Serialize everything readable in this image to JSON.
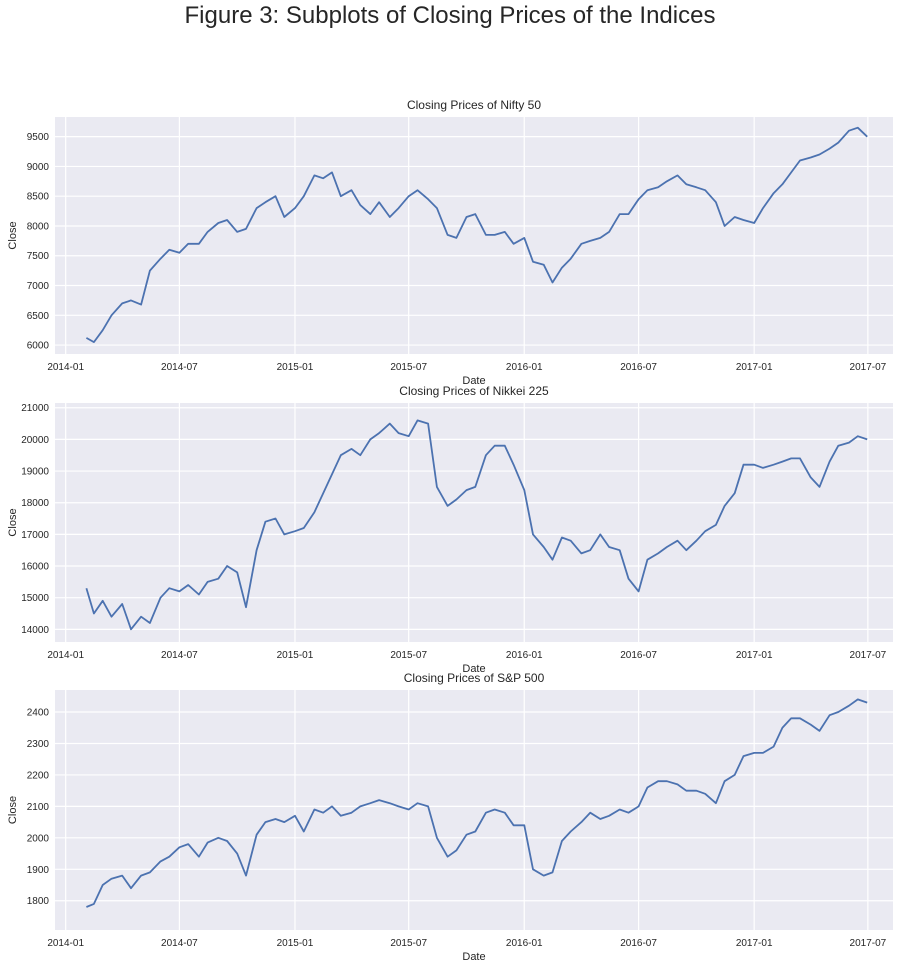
{
  "figure_title": "Figure 3: Subplots of Closing Prices of the Indices",
  "colors": {
    "line": "#4c72b0",
    "panel": "#eaeaf2",
    "grid": "#ffffff"
  },
  "chart_data": [
    {
      "type": "line",
      "title": "Closing Prices of Nifty 50",
      "xlabel": "Date",
      "ylabel": "Close",
      "x_ticks": [
        "2014-01",
        "2014-07",
        "2015-01",
        "2015-07",
        "2016-01",
        "2016-07",
        "2017-01",
        "2017-07"
      ],
      "y_ticks": [
        6000,
        6500,
        7000,
        7500,
        8000,
        8500,
        9000,
        9500
      ],
      "ylim": [
        5850,
        9830
      ],
      "xlim": [
        "2013-12-15",
        "2017-08-10"
      ],
      "grid": true,
      "series": [
        {
          "x": [
            "2014-02-03",
            "2014-02-15",
            "2014-03-01",
            "2014-03-15",
            "2014-04-01",
            "2014-04-15",
            "2014-05-01",
            "2014-05-15",
            "2014-06-01",
            "2014-06-15",
            "2014-07-01",
            "2014-07-15",
            "2014-08-01",
            "2014-08-15",
            "2014-09-01",
            "2014-09-15",
            "2014-10-01",
            "2014-10-15",
            "2014-11-01",
            "2014-11-15",
            "2014-12-01",
            "2014-12-15",
            "2015-01-01",
            "2015-01-15",
            "2015-02-01",
            "2015-02-15",
            "2015-03-01",
            "2015-03-15",
            "2015-04-01",
            "2015-04-15",
            "2015-05-01",
            "2015-05-15",
            "2015-06-01",
            "2015-06-15",
            "2015-07-01",
            "2015-07-15",
            "2015-08-01",
            "2015-08-15",
            "2015-09-01",
            "2015-09-15",
            "2015-10-01",
            "2015-10-15",
            "2015-11-01",
            "2015-11-15",
            "2015-12-01",
            "2015-12-15",
            "2016-01-01",
            "2016-01-15",
            "2016-02-01",
            "2016-02-15",
            "2016-03-01",
            "2016-03-15",
            "2016-04-01",
            "2016-04-15",
            "2016-05-01",
            "2016-05-15",
            "2016-06-01",
            "2016-06-15",
            "2016-07-01",
            "2016-07-15",
            "2016-08-01",
            "2016-08-15",
            "2016-09-01",
            "2016-09-15",
            "2016-10-01",
            "2016-10-15",
            "2016-11-01",
            "2016-11-15",
            "2016-12-01",
            "2016-12-15",
            "2017-01-01",
            "2017-01-15",
            "2017-02-01",
            "2017-02-15",
            "2017-03-01",
            "2017-03-15",
            "2017-04-01",
            "2017-04-15",
            "2017-05-01",
            "2017-05-15",
            "2017-06-01",
            "2017-06-15",
            "2017-06-30"
          ],
          "y": [
            6120,
            6050,
            6250,
            6500,
            6700,
            6750,
            6680,
            7250,
            7450,
            7600,
            7550,
            7700,
            7700,
            7900,
            8050,
            8100,
            7900,
            7950,
            8300,
            8400,
            8500,
            8150,
            8300,
            8500,
            8850,
            8800,
            8900,
            8500,
            8600,
            8350,
            8200,
            8400,
            8150,
            8300,
            8500,
            8600,
            8450,
            8300,
            7850,
            7800,
            8150,
            8200,
            7850,
            7850,
            7900,
            7700,
            7800,
            7400,
            7350,
            7050,
            7300,
            7450,
            7700,
            7750,
            7800,
            7900,
            8200,
            8200,
            8450,
            8600,
            8650,
            8750,
            8850,
            8700,
            8650,
            8600,
            8400,
            8000,
            8150,
            8100,
            8050,
            8300,
            8550,
            8700,
            8900,
            9100,
            9150,
            9200,
            9300,
            9400,
            9600,
            9650,
            9500
          ]
        }
      ]
    },
    {
      "type": "line",
      "title": "Closing Prices of Nikkei 225",
      "xlabel": "Date",
      "ylabel": "Close",
      "x_ticks": [
        "2014-01",
        "2014-07",
        "2015-01",
        "2015-07",
        "2016-01",
        "2016-07",
        "2017-01",
        "2017-07"
      ],
      "y_ticks": [
        14000,
        15000,
        16000,
        17000,
        18000,
        19000,
        20000,
        21000
      ],
      "ylim": [
        13600,
        21150
      ],
      "xlim": [
        "2013-12-15",
        "2017-08-10"
      ],
      "grid": true,
      "series": [
        {
          "x": [
            "2014-02-03",
            "2014-02-15",
            "2014-03-01",
            "2014-03-15",
            "2014-04-01",
            "2014-04-15",
            "2014-05-01",
            "2014-05-15",
            "2014-06-01",
            "2014-06-15",
            "2014-07-01",
            "2014-07-15",
            "2014-08-01",
            "2014-08-15",
            "2014-09-01",
            "2014-09-15",
            "2014-10-01",
            "2014-10-15",
            "2014-11-01",
            "2014-11-15",
            "2014-12-01",
            "2014-12-15",
            "2015-01-01",
            "2015-01-15",
            "2015-02-01",
            "2015-02-15",
            "2015-03-01",
            "2015-03-15",
            "2015-04-01",
            "2015-04-15",
            "2015-05-01",
            "2015-05-15",
            "2015-06-01",
            "2015-06-15",
            "2015-07-01",
            "2015-07-15",
            "2015-08-01",
            "2015-08-15",
            "2015-09-01",
            "2015-09-15",
            "2015-10-01",
            "2015-10-15",
            "2015-11-01",
            "2015-11-15",
            "2015-12-01",
            "2015-12-15",
            "2016-01-01",
            "2016-01-15",
            "2016-02-01",
            "2016-02-15",
            "2016-03-01",
            "2016-03-15",
            "2016-04-01",
            "2016-04-15",
            "2016-05-01",
            "2016-05-15",
            "2016-06-01",
            "2016-06-15",
            "2016-07-01",
            "2016-07-15",
            "2016-08-01",
            "2016-08-15",
            "2016-09-01",
            "2016-09-15",
            "2016-10-01",
            "2016-10-15",
            "2016-11-01",
            "2016-11-15",
            "2016-12-01",
            "2016-12-15",
            "2017-01-01",
            "2017-01-15",
            "2017-02-01",
            "2017-02-15",
            "2017-03-01",
            "2017-03-15",
            "2017-04-01",
            "2017-04-15",
            "2017-05-01",
            "2017-05-15",
            "2017-06-01",
            "2017-06-15",
            "2017-06-30"
          ],
          "y": [
            15300,
            14500,
            14900,
            14400,
            14800,
            14000,
            14400,
            14200,
            15000,
            15300,
            15200,
            15400,
            15100,
            15500,
            15600,
            16000,
            15800,
            14700,
            16500,
            17400,
            17500,
            17000,
            17100,
            17200,
            17700,
            18300,
            18900,
            19500,
            19700,
            19500,
            20000,
            20200,
            20500,
            20200,
            20100,
            20600,
            20500,
            18500,
            17900,
            18100,
            18400,
            18500,
            19500,
            19800,
            19800,
            19200,
            18400,
            17000,
            16600,
            16200,
            16900,
            16800,
            16400,
            16500,
            17000,
            16600,
            16500,
            15600,
            15200,
            16200,
            16400,
            16600,
            16800,
            16500,
            16800,
            17100,
            17300,
            17900,
            18300,
            19200,
            19200,
            19100,
            19200,
            19300,
            19400,
            19400,
            18800,
            18500,
            19300,
            19800,
            19900,
            20100,
            20000
          ]
        }
      ]
    },
    {
      "type": "line",
      "title": "Closing Prices of S&P 500",
      "xlabel": "Date",
      "ylabel": "Close",
      "x_ticks": [
        "2014-01",
        "2014-07",
        "2015-01",
        "2015-07",
        "2016-01",
        "2016-07",
        "2017-01",
        "2017-07"
      ],
      "y_ticks": [
        1800,
        1900,
        2000,
        2100,
        2200,
        2300,
        2400
      ],
      "ylim": [
        1707,
        2470
      ],
      "xlim": [
        "2013-12-15",
        "2017-08-10"
      ],
      "grid": true,
      "series": [
        {
          "x": [
            "2014-02-03",
            "2014-02-15",
            "2014-03-01",
            "2014-03-15",
            "2014-04-01",
            "2014-04-15",
            "2014-05-01",
            "2014-05-15",
            "2014-06-01",
            "2014-06-15",
            "2014-07-01",
            "2014-07-15",
            "2014-08-01",
            "2014-08-15",
            "2014-09-01",
            "2014-09-15",
            "2014-10-01",
            "2014-10-15",
            "2014-11-01",
            "2014-11-15",
            "2014-12-01",
            "2014-12-15",
            "2015-01-01",
            "2015-01-15",
            "2015-02-01",
            "2015-02-15",
            "2015-03-01",
            "2015-03-15",
            "2015-04-01",
            "2015-04-15",
            "2015-05-01",
            "2015-05-15",
            "2015-06-01",
            "2015-06-15",
            "2015-07-01",
            "2015-07-15",
            "2015-08-01",
            "2015-08-15",
            "2015-09-01",
            "2015-09-15",
            "2015-10-01",
            "2015-10-15",
            "2015-11-01",
            "2015-11-15",
            "2015-12-01",
            "2015-12-15",
            "2016-01-01",
            "2016-01-15",
            "2016-02-01",
            "2016-02-15",
            "2016-03-01",
            "2016-03-15",
            "2016-04-01",
            "2016-04-15",
            "2016-05-01",
            "2016-05-15",
            "2016-06-01",
            "2016-06-15",
            "2016-07-01",
            "2016-07-15",
            "2016-08-01",
            "2016-08-15",
            "2016-09-01",
            "2016-09-15",
            "2016-10-01",
            "2016-10-15",
            "2016-11-01",
            "2016-11-15",
            "2016-12-01",
            "2016-12-15",
            "2017-01-01",
            "2017-01-15",
            "2017-02-01",
            "2017-02-15",
            "2017-03-01",
            "2017-03-15",
            "2017-04-01",
            "2017-04-15",
            "2017-05-01",
            "2017-05-15",
            "2017-06-01",
            "2017-06-15",
            "2017-06-30"
          ],
          "y": [
            1780,
            1790,
            1850,
            1870,
            1880,
            1840,
            1880,
            1890,
            1925,
            1940,
            1970,
            1980,
            1940,
            1985,
            2000,
            1990,
            1950,
            1880,
            2010,
            2050,
            2060,
            2050,
            2070,
            2020,
            2090,
            2080,
            2100,
            2070,
            2080,
            2100,
            2110,
            2120,
            2110,
            2100,
            2090,
            2110,
            2100,
            2000,
            1940,
            1960,
            2010,
            2020,
            2080,
            2090,
            2080,
            2040,
            2040,
            1900,
            1880,
            1890,
            1990,
            2020,
            2050,
            2080,
            2060,
            2070,
            2090,
            2080,
            2100,
            2160,
            2180,
            2180,
            2170,
            2150,
            2150,
            2140,
            2110,
            2180,
            2200,
            2260,
            2270,
            2270,
            2290,
            2350,
            2380,
            2380,
            2360,
            2340,
            2390,
            2400,
            2420,
            2440,
            2430
          ]
        }
      ]
    }
  ]
}
